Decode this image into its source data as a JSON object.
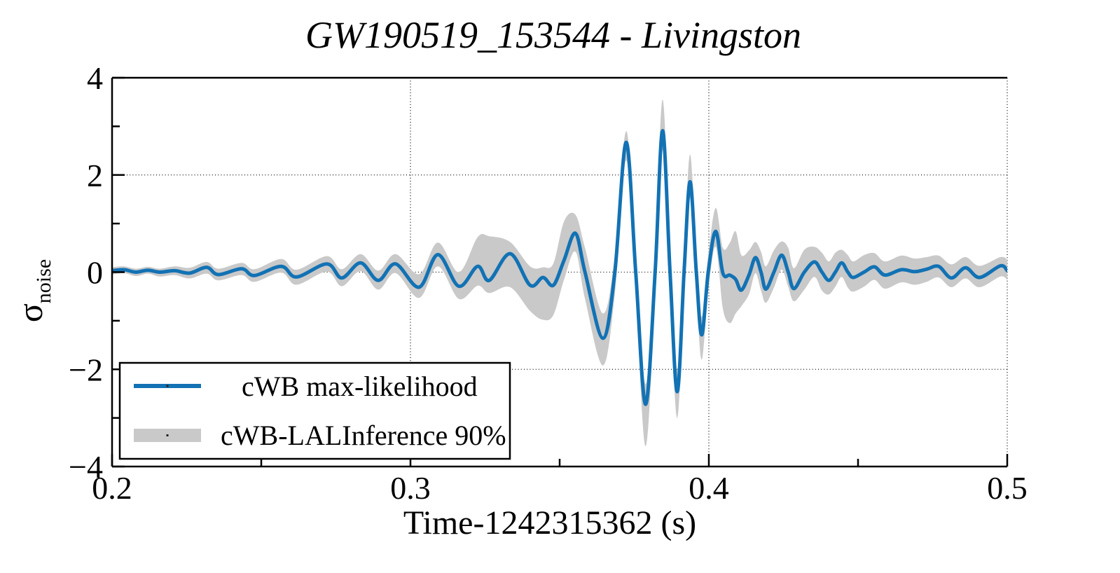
{
  "title": "GW190519_153544 - Livingston",
  "axes": {
    "xlabel": "Time-1242315362 (s)",
    "ylabel": {
      "symbol": "σ",
      "subscript": "noise"
    },
    "xlim": [
      0.2,
      0.5
    ],
    "ylim": [
      -4,
      4
    ],
    "x_ticks": [
      {
        "v": 0.2,
        "label": "0.2"
      },
      {
        "v": 0.3,
        "label": "0.3"
      },
      {
        "v": 0.4,
        "label": "0.4"
      },
      {
        "v": 0.5,
        "label": "0.5"
      }
    ],
    "x_minor": [
      0.25,
      0.35,
      0.45
    ],
    "y_ticks": [
      {
        "v": 4,
        "label": "4"
      },
      {
        "v": 2,
        "label": "2"
      },
      {
        "v": 0,
        "label": "0"
      },
      {
        "v": -2,
        "label": "−2"
      },
      {
        "v": -4,
        "label": "−4"
      }
    ],
    "y_minor": [
      3,
      1,
      -1,
      -3
    ],
    "grid_x": [
      0.3,
      0.4,
      0.5
    ],
    "grid_y": [
      2,
      0,
      -2
    ]
  },
  "legend": {
    "items": [
      {
        "label": "cWB max-likelihood",
        "swatch": "line"
      },
      {
        "label": "cWB-LALInference 90%",
        "swatch": "band"
      }
    ]
  },
  "colors": {
    "line": "#1272b4",
    "band": "#c9c9c9",
    "frame": "#000000",
    "grid": "#111111"
  },
  "chart_data": {
    "type": "line",
    "title": "GW190519_153544 - Livingston",
    "xlabel": "Time-1242315362 (s)",
    "ylabel": "sigma_noise",
    "xlim": [
      0.2,
      0.5
    ],
    "ylim": [
      -4,
      4
    ],
    "grid": "dotted",
    "legend_position": "bottom-left",
    "x": [
      0.2,
      0.204,
      0.208,
      0.212,
      0.216,
      0.221,
      0.226,
      0.2317,
      0.2356,
      0.2434,
      0.2477,
      0.2567,
      0.2618,
      0.272,
      0.277,
      0.2833,
      0.2892,
      0.295,
      0.3029,
      0.3092,
      0.3162,
      0.3225,
      0.3264,
      0.3334,
      0.3401,
      0.3444,
      0.3479,
      0.3515,
      0.3553,
      0.3585,
      0.3645,
      0.3685,
      0.3723,
      0.3755,
      0.3788,
      0.382,
      0.3845,
      0.387,
      0.3894,
      0.3917,
      0.3937,
      0.3958,
      0.3976,
      0.3998,
      0.4023,
      0.4047,
      0.407,
      0.409,
      0.4109,
      0.4135,
      0.4156,
      0.4175,
      0.4191,
      0.4218,
      0.4244,
      0.4266,
      0.4285,
      0.432,
      0.4354,
      0.4379,
      0.4402,
      0.4424,
      0.4445,
      0.4466,
      0.4484,
      0.452,
      0.4555,
      0.459,
      0.4645,
      0.469,
      0.473,
      0.477,
      0.4813,
      0.486,
      0.4907,
      0.4977,
      0.5
    ],
    "series": [
      {
        "name": "cWB max-likelihood",
        "type": "line",
        "color": "#1272b4",
        "values": [
          0.03,
          0.05,
          0.0,
          0.04,
          0.0,
          0.03,
          -0.02,
          0.1,
          -0.05,
          0.07,
          -0.07,
          0.12,
          -0.1,
          0.17,
          -0.12,
          0.19,
          -0.17,
          0.17,
          -0.31,
          0.36,
          -0.29,
          0.12,
          -0.17,
          0.38,
          -0.27,
          -0.11,
          -0.27,
          0.25,
          0.8,
          0.0,
          -1.36,
          0.0,
          2.67,
          0.0,
          -2.72,
          0.0,
          2.91,
          0.0,
          -2.46,
          0.0,
          1.86,
          0.0,
          -1.29,
          0.0,
          0.84,
          -0.02,
          -0.06,
          -0.15,
          -0.37,
          -0.05,
          0.3,
          0.0,
          -0.35,
          0.0,
          0.35,
          0.0,
          -0.34,
          0.0,
          0.21,
          0.0,
          -0.17,
          0.0,
          0.19,
          0.0,
          -0.11,
          0.0,
          0.11,
          -0.06,
          0.05,
          0.01,
          0.06,
          0.12,
          -0.12,
          0.09,
          -0.11,
          0.13,
          0.03
        ]
      },
      {
        "name": "cWB-LALInference 90%",
        "type": "band",
        "color": "#c9c9c9",
        "upper": [
          0.1,
          0.12,
          0.07,
          0.11,
          0.07,
          0.12,
          0.09,
          0.21,
          0.07,
          0.19,
          0.06,
          0.27,
          0.05,
          0.33,
          0.06,
          0.37,
          0.03,
          0.37,
          -0.04,
          0.61,
          0.0,
          0.72,
          0.74,
          0.62,
          0.12,
          0.1,
          0.18,
          1.05,
          1.18,
          0.5,
          -0.85,
          0.35,
          2.9,
          0.4,
          -2.3,
          0.45,
          3.55,
          0.45,
          -2.02,
          0.4,
          2.42,
          0.38,
          -0.92,
          0.35,
          1.32,
          0.5,
          0.6,
          0.84,
          0.35,
          0.45,
          0.62,
          0.42,
          0.12,
          0.45,
          0.63,
          0.5,
          0.08,
          0.46,
          0.52,
          0.4,
          0.22,
          0.4,
          0.46,
          0.35,
          0.22,
          0.35,
          0.39,
          0.22,
          0.34,
          0.28,
          0.31,
          0.34,
          0.16,
          0.31,
          0.13,
          0.31,
          0.26
        ],
        "lower": [
          -0.05,
          -0.02,
          -0.08,
          -0.03,
          -0.09,
          -0.06,
          -0.13,
          -0.03,
          -0.17,
          -0.06,
          -0.2,
          -0.01,
          -0.26,
          0.01,
          -0.29,
          0.02,
          -0.36,
          -0.02,
          -0.53,
          0.12,
          -0.55,
          -0.28,
          -0.43,
          -0.31,
          -0.8,
          -0.98,
          -0.88,
          -0.15,
          0.42,
          -0.55,
          -1.92,
          -0.45,
          2.3,
          -0.45,
          -3.58,
          -0.45,
          2.5,
          -0.45,
          -3.0,
          -0.4,
          1.52,
          -0.38,
          -1.8,
          -0.38,
          0.52,
          -0.75,
          -1.05,
          -0.85,
          -0.7,
          -0.45,
          -0.02,
          -0.38,
          -0.63,
          -0.32,
          0.05,
          -0.3,
          -0.6,
          -0.36,
          -0.1,
          -0.38,
          -0.46,
          -0.3,
          -0.1,
          -0.32,
          -0.4,
          -0.3,
          -0.16,
          -0.34,
          -0.21,
          -0.26,
          -0.2,
          -0.11,
          -0.31,
          -0.13,
          -0.31,
          -0.09,
          -0.16
        ]
      }
    ]
  }
}
